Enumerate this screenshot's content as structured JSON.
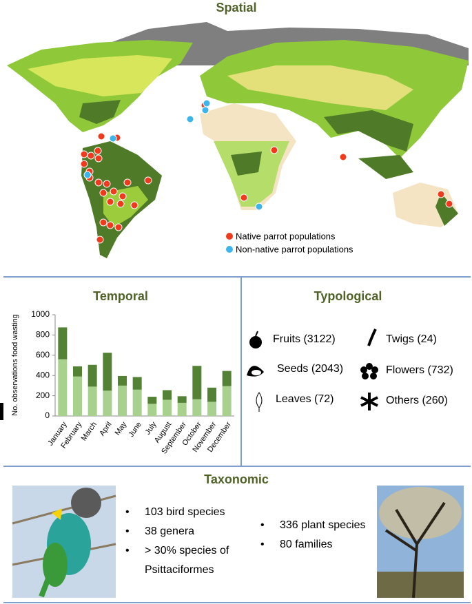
{
  "spatial": {
    "title": "Spatial",
    "legend": [
      "Native parrot populations",
      "Non-native parrot populations"
    ]
  },
  "chart_data": {
    "type": "bar",
    "stacked": true,
    "title": "Temporal",
    "y_label": "No. observations food wasting",
    "categories": [
      "January",
      "February",
      "March",
      "April",
      "May",
      "June",
      "July",
      "August",
      "September",
      "October",
      "November",
      "December"
    ],
    "series": [
      {
        "color": "#a9d18e",
        "values": [
          560,
          390,
          290,
          250,
          300,
          260,
          120,
          160,
          130,
          165,
          140,
          295
        ]
      },
      {
        "color": "#548235",
        "values": [
          315,
          100,
          215,
          375,
          95,
          125,
          70,
          95,
          65,
          330,
          140,
          150
        ]
      }
    ],
    "ylim": [
      0,
      1000
    ],
    "yticks": [
      0,
      200,
      400,
      600,
      800,
      1000
    ]
  },
  "typological": {
    "title": "Typological",
    "items": [
      "Fruits (3122)",
      "Seeds (2043)",
      "Leaves (72)",
      "Twigs (24)",
      "Flowers (732)",
      "Others (260)"
    ]
  },
  "taxonomic": {
    "title": "Taxonomic",
    "animals": [
      "103 bird species",
      "38 genera",
      "> 30% species of Psittaciformes"
    ],
    "plants": [
      "336 plant species",
      "80 families"
    ]
  }
}
